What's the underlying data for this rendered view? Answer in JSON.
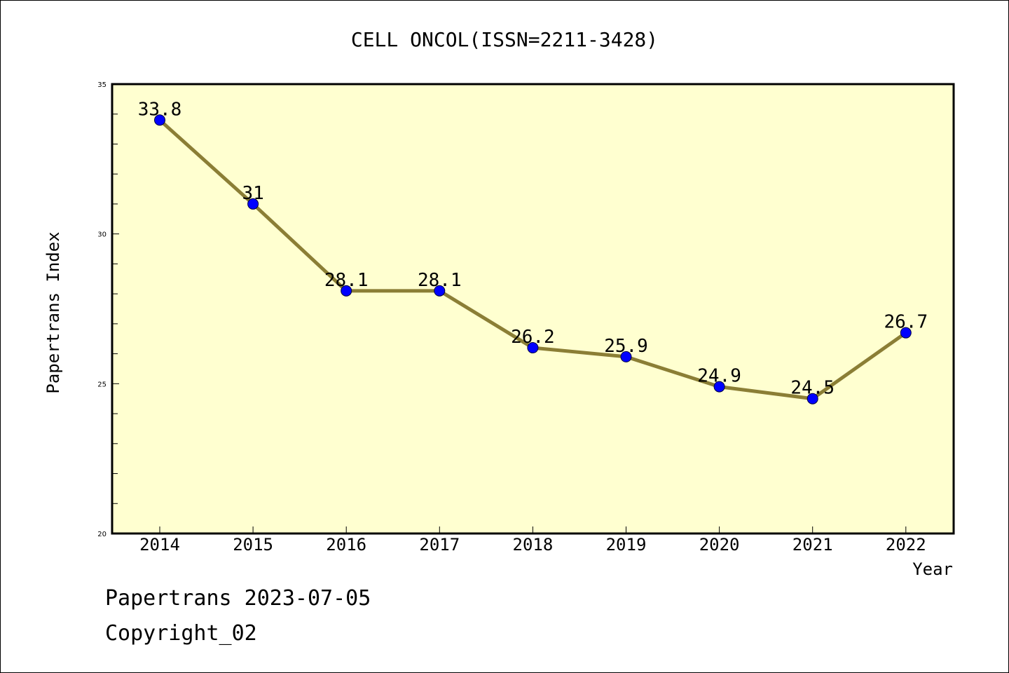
{
  "chart_data": {
    "type": "line",
    "title": "CELL ONCOL(ISSN=2211-3428)",
    "xlabel": "Year",
    "ylabel": "Papertrans Index",
    "categories": [
      "2014",
      "2015",
      "2016",
      "2017",
      "2018",
      "2019",
      "2020",
      "2021",
      "2022"
    ],
    "series": [
      {
        "values": [
          33.8,
          31,
          28.1,
          28.1,
          26.2,
          25.9,
          24.9,
          24.5,
          26.7
        ],
        "labels": [
          "33.8",
          "31",
          "28.1",
          "28.1",
          "26.2",
          "25.9",
          "24.9",
          "24.5",
          "26.7"
        ]
      }
    ],
    "ylim": [
      20,
      35
    ],
    "y_ticks": [
      "20",
      "25",
      "30",
      "35"
    ],
    "grid": false,
    "colors": {
      "plot_background": "#FFFFD0",
      "line": "#8B7E35",
      "marker": "#0000FF"
    }
  },
  "footer": {
    "line1": "Papertrans 2023-07-05",
    "line2": "Copyright_02"
  }
}
